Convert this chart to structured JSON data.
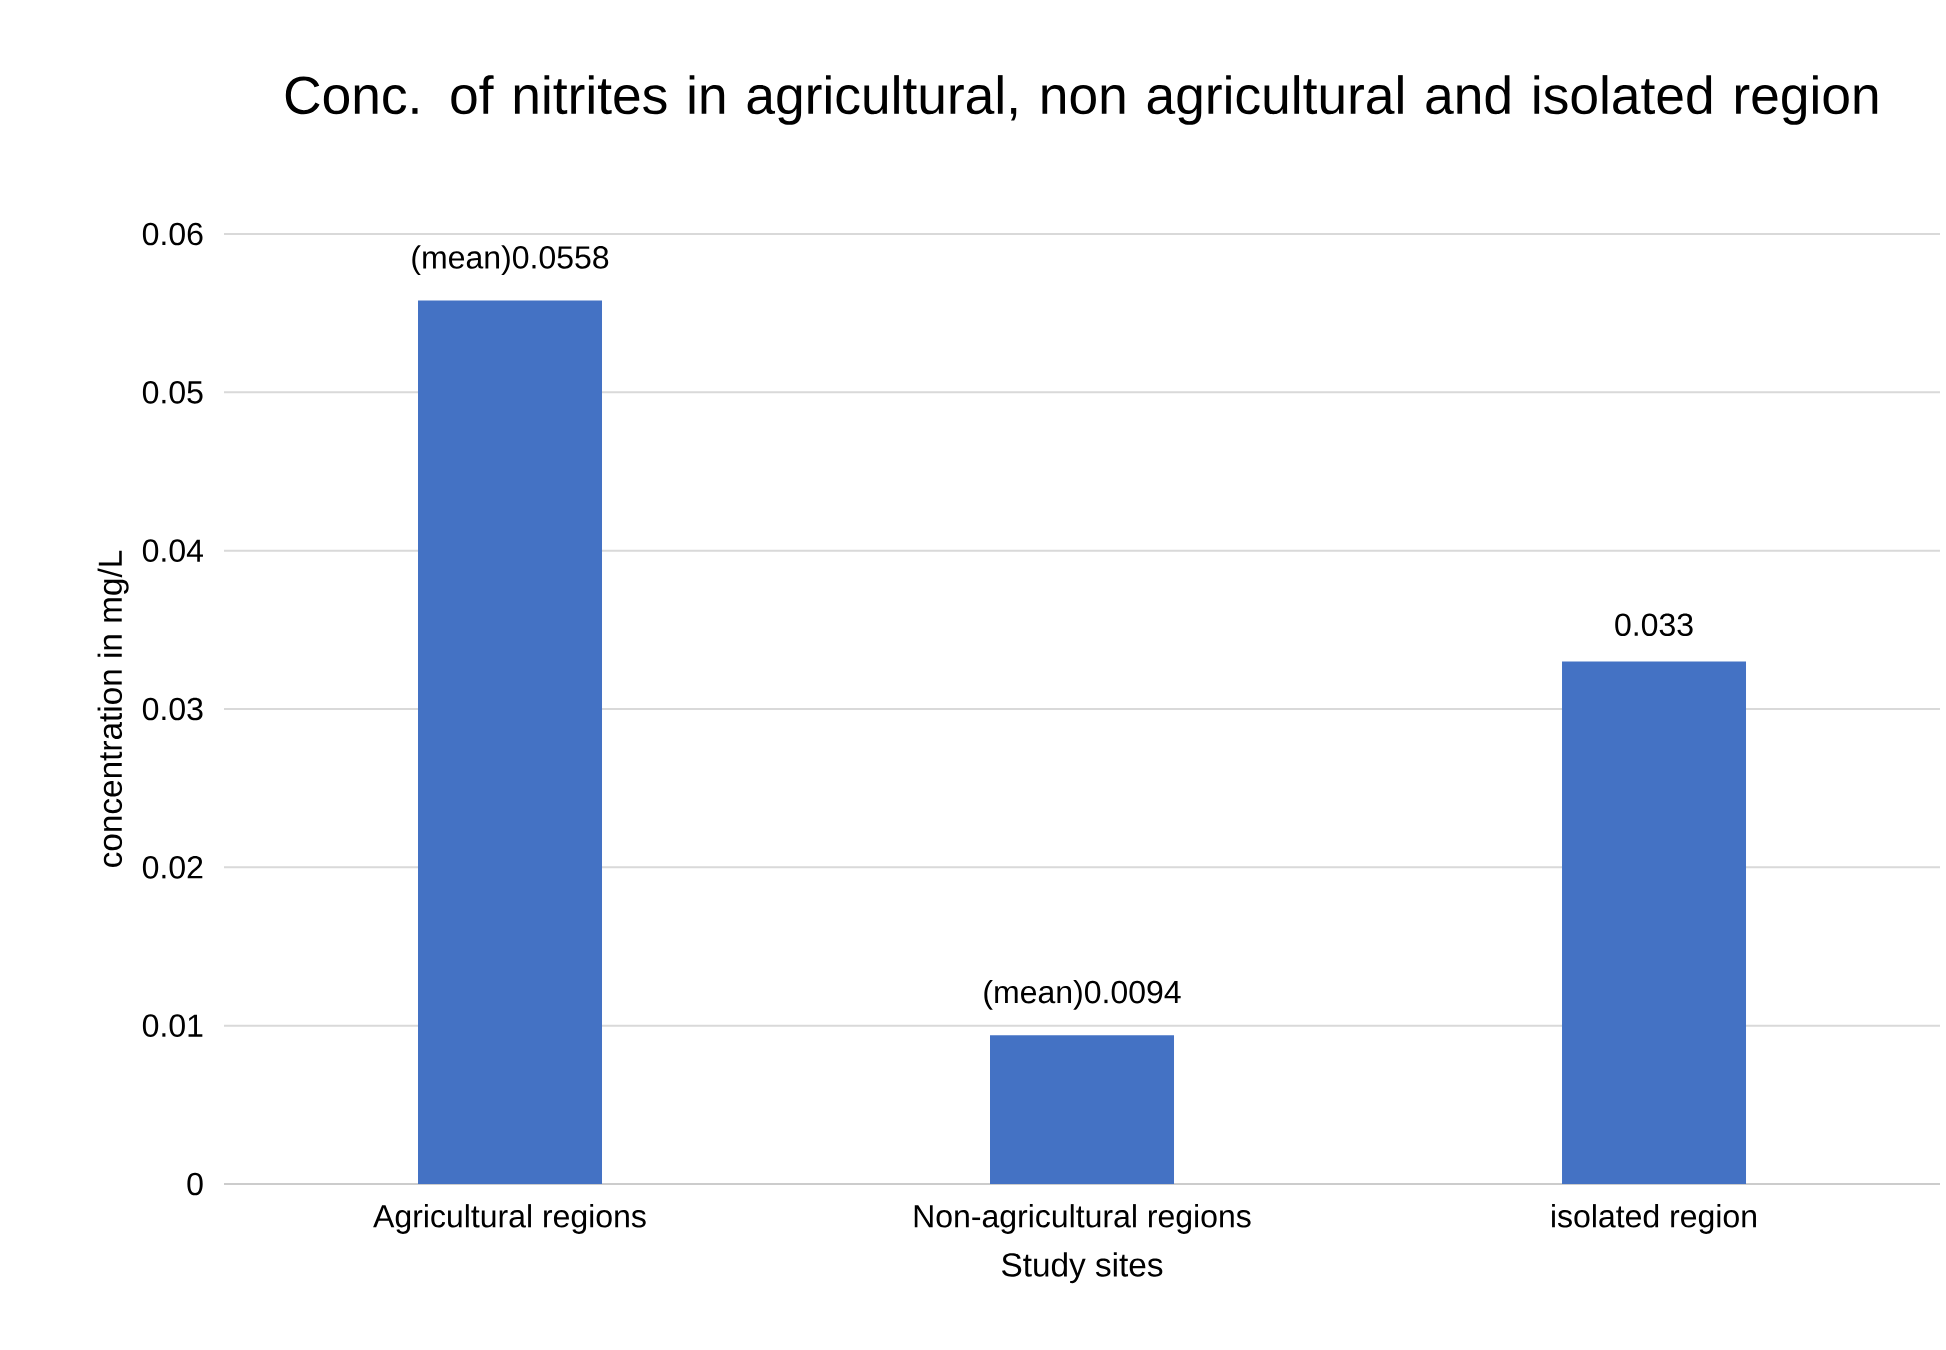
{
  "chart_data": {
    "type": "bar",
    "title": "Conc. of nitrites  in agricultural, non agricultural and isolated  region",
    "xlabel": "Study sites",
    "ylabel": "concentration in mg/L",
    "categories": [
      "Agricultural regions",
      "Non-agricultural regions",
      "isolated region"
    ],
    "values": [
      0.0558,
      0.0094,
      0.033
    ],
    "value_labels": [
      "(mean)0.0558",
      "(mean)0.0094",
      "0.033"
    ],
    "color": "#4472c4",
    "ylim": [
      0,
      0.06
    ],
    "yticks": [
      0,
      0.01,
      0.02,
      0.03,
      0.04,
      0.05,
      0.06
    ],
    "grid": "y"
  }
}
